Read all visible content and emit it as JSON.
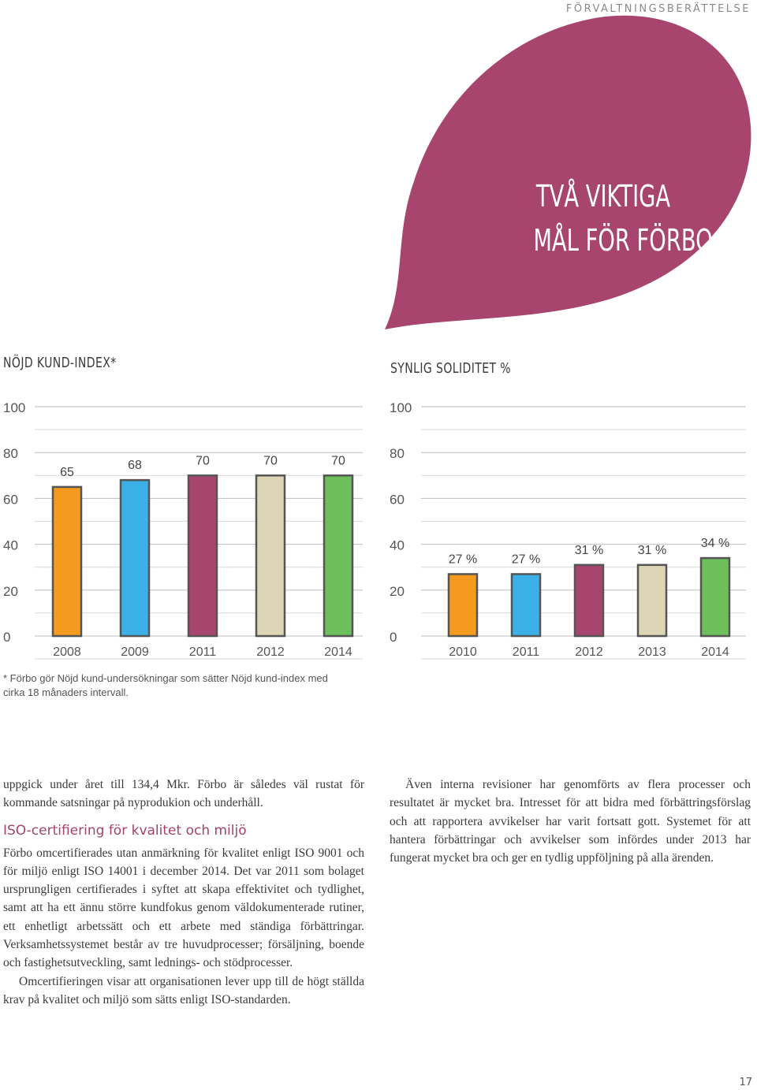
{
  "header": {
    "section_label": "FÖRVALTNINGSBERÄTTELSE"
  },
  "banner": {
    "title_line1": "TVÅ VIKTIGA",
    "title_line2": "MÅL FÖR FÖRBO",
    "color": "#a8456f"
  },
  "chart_data": [
    {
      "type": "bar",
      "title": "NÖJD KUND-INDEX*",
      "categories": [
        "2008",
        "2009",
        "2011",
        "2012",
        "2014"
      ],
      "values": [
        65,
        68,
        70,
        70,
        70
      ],
      "value_labels": [
        "65",
        "68",
        "70",
        "70",
        "70"
      ],
      "colors": [
        "#f39a1f",
        "#3bb0e6",
        "#a8456f",
        "#dcd6b6",
        "#6dbf5b"
      ],
      "yticks": [
        "0",
        "20",
        "40",
        "60",
        "80",
        "100"
      ],
      "ylim": [
        0,
        100
      ],
      "grid": true
    },
    {
      "type": "bar",
      "title": "SYNLIG SOLIDITET %",
      "categories": [
        "2010",
        "2011",
        "2012",
        "2013",
        "2014"
      ],
      "values": [
        27,
        27,
        31,
        31,
        34
      ],
      "value_labels": [
        "27 %",
        "27 %",
        "31 %",
        "31 %",
        "34 %"
      ],
      "colors": [
        "#f39a1f",
        "#3bb0e6",
        "#a8456f",
        "#dcd6b6",
        "#6dbf5b"
      ],
      "yticks": [
        "0",
        "20",
        "40",
        "60",
        "80",
        "100"
      ],
      "ylim": [
        0,
        100
      ],
      "grid": true
    }
  ],
  "footnote": "* Förbo gör Nöjd kund-undersökningar som sätter Nöjd kund-index med cirka 18 månaders intervall.",
  "body": {
    "left_p1": "uppgick under året till 134,4 Mkr. Förbo är således väl rustat för kommande satsningar på nyprodukion och underhåll.",
    "heading": "ISO-certifiering för kvalitet och miljö",
    "left_p2": "Förbo omcertifierades utan anmärkning för kvalitet enligt ISO 9001 och för miljö enligt ISO 14001 i december 2014. Det var 2011 som bolaget ursprungligen certifierades i syftet att skapa effektivitet och tydlighet, samt att ha ett ännu större kundfokus genom väldokumenterade rutiner, ett enhetligt arbetssätt och ett arbete med ständiga förbättringar. Verksamhetssystemet består av tre huvudprocesser; försäljning, boende och fastighetsutveckling, samt lednings- och stödprocesser.",
    "left_p3": "Omcertifieringen visar att organisationen lever upp till de högt ställda krav på kvalitet och miljö som sätts enligt ISO-standarden.",
    "right_p1": "Även interna revisioner har genomförts av flera processer och resultatet är mycket bra. Intresset för att bidra med förbättringsförslag och att rapportera avvikelser har varit fortsatt gott. Systemet för att hantera förbättringar och avvikelser som infördes under 2013 har fungerat mycket bra och ger en tydlig uppföljning på alla ärenden."
  },
  "page_number": "17"
}
